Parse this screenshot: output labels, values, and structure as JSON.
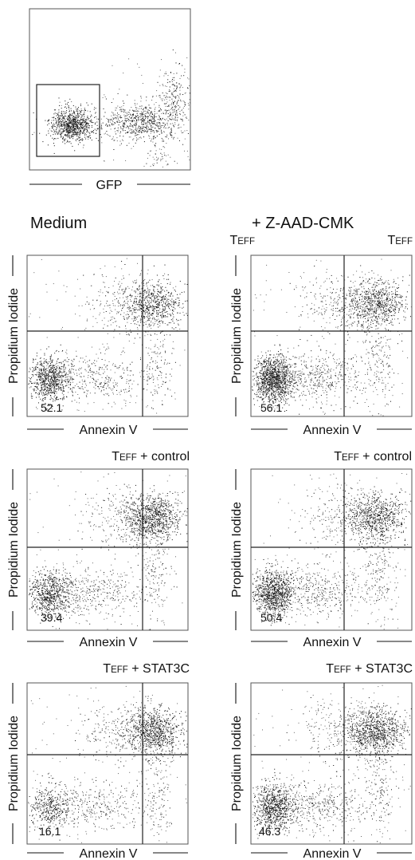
{
  "headers": {
    "left": "Medium",
    "right": "+ Z-AAD-CMK"
  },
  "gfp_plot": {
    "xlabel": "GFP",
    "gate": "GFP-negative region (boxed)"
  },
  "plot_labels": {
    "xlabel": "Annexin V",
    "ylabel": "Propidium Iodide"
  },
  "panels": [
    {
      "title": "TEFF",
      "title_main": "T",
      "title_sub": "EFF",
      "title_rest": "",
      "value": "52.1",
      "column": "Medium"
    },
    {
      "title": "TEFF",
      "title_main": "T",
      "title_sub": "EFF",
      "title_rest": "",
      "value": "56.1",
      "column": "+ Z-AAD-CMK"
    },
    {
      "title": "TEFF + control",
      "title_main": "T",
      "title_sub": "EFF",
      "title_rest": " + control",
      "value": "39.4",
      "column": "Medium"
    },
    {
      "title": "TEFF + control",
      "title_main": "T",
      "title_sub": "EFF",
      "title_rest": " + control",
      "value": "50.4",
      "column": "+ Z-AAD-CMK"
    },
    {
      "title": "TEFF + STAT3C",
      "title_main": "T",
      "title_sub": "EFF",
      "title_rest": " + STAT3C",
      "value": "16.1",
      "column": "Medium"
    },
    {
      "title": "TEFF + STAT3C",
      "title_main": "T",
      "title_sub": "EFF",
      "title_rest": " + STAT3C",
      "value": "46.3",
      "column": "+ Z-AAD-CMK"
    }
  ],
  "chart_data": [
    {
      "type": "scatter",
      "xlabel": "GFP",
      "ylabel": "",
      "title": "",
      "note": "dot plot with gate around GFP-negative population"
    },
    {
      "type": "scatter",
      "series": [
        {
          "panel": "TEFF / Medium",
          "lower_left_percent": 52.1
        },
        {
          "panel": "TEFF / + Z-AAD-CMK",
          "lower_left_percent": 56.1
        },
        {
          "panel": "TEFF + control / Medium",
          "lower_left_percent": 39.4
        },
        {
          "panel": "TEFF + control / + Z-AAD-CMK",
          "lower_left_percent": 50.4
        },
        {
          "panel": "TEFF + STAT3C / Medium",
          "lower_left_percent": 16.1
        },
        {
          "panel": "TEFF + STAT3C / + Z-AAD-CMK",
          "lower_left_percent": 46.3
        }
      ],
      "xlabel": "Annexin V",
      "ylabel": "Propidium Iodide",
      "grid": false
    }
  ]
}
